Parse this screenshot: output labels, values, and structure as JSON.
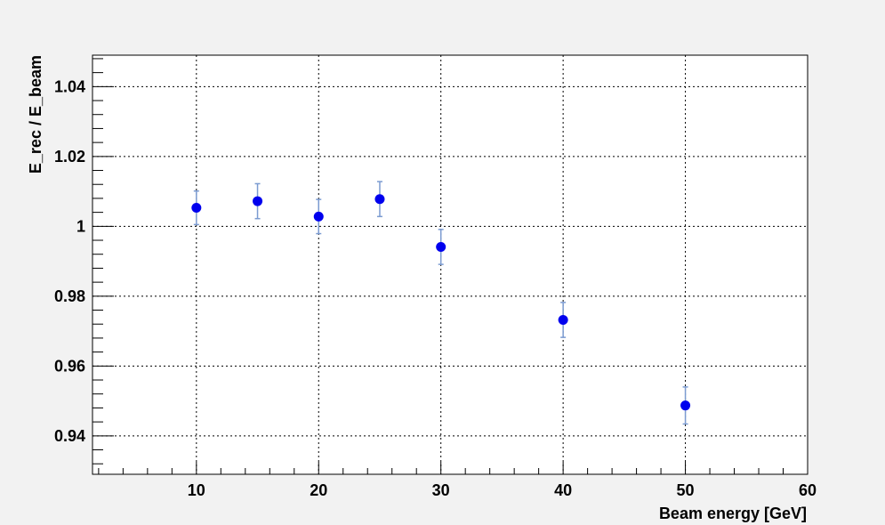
{
  "chart_data": {
    "type": "scatter",
    "xlabel": "Beam energy [GeV]",
    "ylabel": "E_rec / E_beam",
    "xlim": [
      1.5,
      60
    ],
    "ylim": [
      0.929,
      1.049
    ],
    "grid": true,
    "x_ticks": [
      10,
      20,
      30,
      40,
      50,
      60
    ],
    "y_ticks": [
      0.94,
      0.96,
      0.98,
      1,
      1.02,
      1.04
    ],
    "x_tick_labels": [
      "10",
      "20",
      "30",
      "40",
      "50",
      "60"
    ],
    "y_tick_labels": [
      "0.94",
      "0.96",
      "0.98",
      "1",
      "1.02",
      "1.04"
    ],
    "series": [
      {
        "x": [
          10,
          15,
          20,
          25,
          30,
          40,
          50
        ],
        "y": [
          1.0053,
          1.0072,
          1.0028,
          1.0078,
          0.9941,
          0.9732,
          0.9487
        ],
        "yerr": [
          0.0048,
          0.005,
          0.0049,
          0.005,
          0.005,
          0.005,
          0.0053
        ],
        "marker_color": "#0000ee",
        "error_color": "#7b9bd1"
      }
    ]
  }
}
